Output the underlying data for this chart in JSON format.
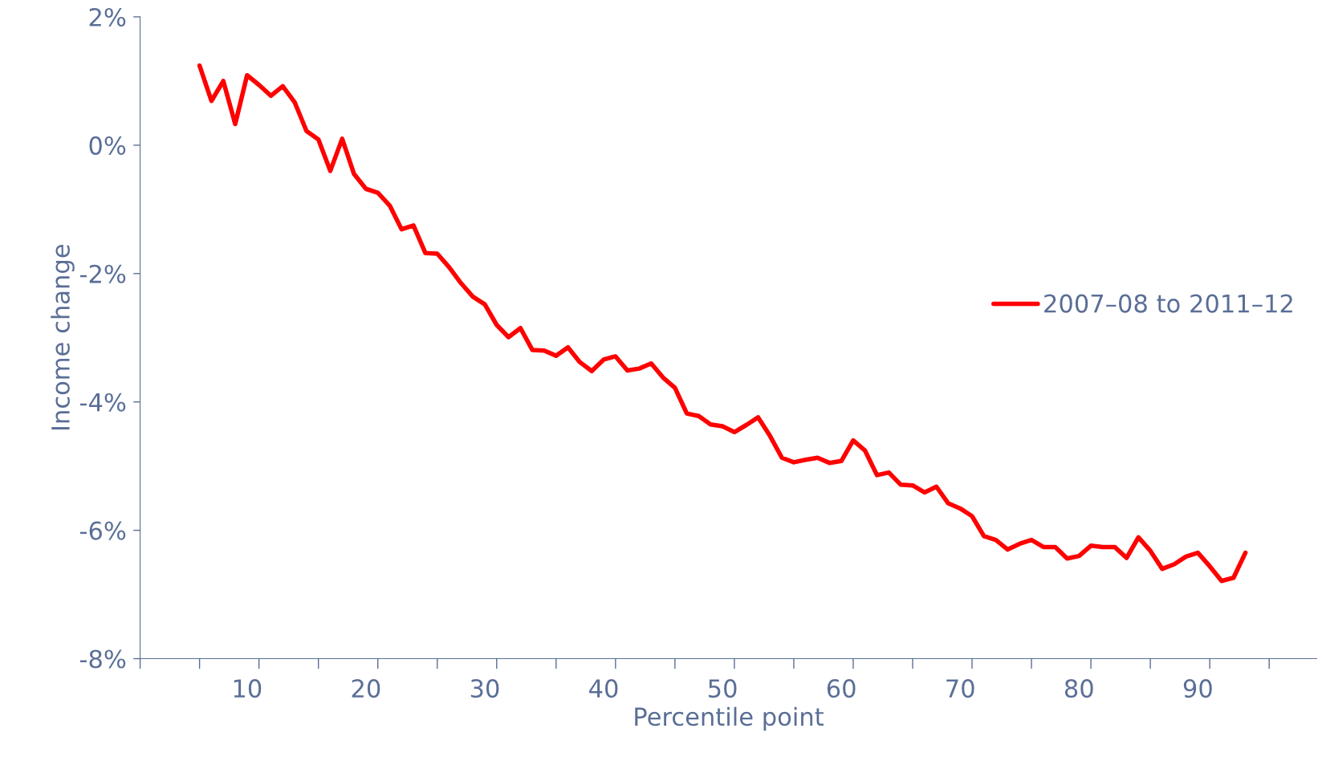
{
  "chart_data": {
    "type": "line",
    "xlabel": "Percentile point",
    "ylabel": "Income change",
    "x": [
      6,
      7,
      8,
      9,
      10,
      11,
      12,
      13,
      14,
      15,
      16,
      17,
      18,
      19,
      20,
      21,
      22,
      23,
      24,
      25,
      26,
      27,
      28,
      29,
      30,
      31,
      32,
      33,
      34,
      35,
      36,
      37,
      38,
      39,
      40,
      41,
      42,
      43,
      44,
      45,
      46,
      47,
      48,
      49,
      50,
      51,
      52,
      53,
      54,
      55,
      56,
      57,
      58,
      59,
      60,
      61,
      62,
      63,
      64,
      65,
      66,
      67,
      68,
      69,
      70,
      71,
      72,
      73,
      74,
      75,
      76,
      77,
      78,
      79,
      80,
      81,
      82,
      83,
      84,
      85,
      86,
      87,
      88,
      89,
      90,
      91,
      92,
      93,
      94
    ],
    "series": [
      {
        "name": "2007–08 to 2011–12",
        "color": "#ff0000",
        "values": [
          1.24,
          0.69,
          1.0,
          0.33,
          1.09,
          0.94,
          0.77,
          0.92,
          0.67,
          0.22,
          0.09,
          -0.4,
          0.1,
          -0.45,
          -0.68,
          -0.74,
          -0.94,
          -1.31,
          -1.25,
          -1.68,
          -1.69,
          -1.9,
          -2.15,
          -2.36,
          -2.48,
          -2.8,
          -2.99,
          -2.85,
          -3.19,
          -3.2,
          -3.28,
          -3.15,
          -3.38,
          -3.52,
          -3.34,
          -3.29,
          -3.51,
          -3.48,
          -3.4,
          -3.62,
          -3.78,
          -4.18,
          -4.22,
          -4.35,
          -4.38,
          -4.47,
          -4.36,
          -4.24,
          -4.53,
          -4.87,
          -4.94,
          -4.9,
          -4.87,
          -4.95,
          -4.92,
          -4.6,
          -4.76,
          -5.14,
          -5.1,
          -5.29,
          -5.3,
          -5.41,
          -5.32,
          -5.58,
          -5.66,
          -5.78,
          -6.09,
          -6.15,
          -6.3,
          -6.21,
          -6.15,
          -6.26,
          -6.26,
          -6.44,
          -6.4,
          -6.24,
          -6.26,
          -6.26,
          -6.43,
          -6.11,
          -6.32,
          -6.6,
          -6.53,
          -6.41,
          -6.35,
          -6.56,
          -6.79,
          -6.74,
          -6.35
        ]
      }
    ],
    "xlim": [
      1,
      100
    ],
    "xticks": [
      {
        "value": 1,
        "label": null
      },
      {
        "value": 6,
        "label": null
      },
      10,
      {
        "value": 11,
        "label": null
      },
      {
        "value": 16,
        "label": null
      },
      20,
      {
        "value": 21,
        "label": null
      },
      {
        "value": 26,
        "label": null
      },
      30,
      {
        "value": 31,
        "label": null
      },
      {
        "value": 36,
        "label": null
      },
      40,
      {
        "value": 41,
        "label": null
      },
      {
        "value": 46,
        "label": null
      },
      50,
      {
        "value": 51,
        "label": null
      },
      {
        "value": 56,
        "label": null
      },
      60,
      {
        "value": 61,
        "label": null
      },
      {
        "value": 66,
        "label": null
      },
      70,
      {
        "value": 71,
        "label": null
      },
      {
        "value": 76,
        "label": null
      },
      80,
      {
        "value": 81,
        "label": null
      },
      {
        "value": 86,
        "label": null
      },
      90,
      {
        "value": 91,
        "label": null
      },
      {
        "value": 96,
        "label": null
      }
    ],
    "ylim": [
      -8,
      2
    ],
    "yticks": [
      {
        "value": -8,
        "label": "-8%"
      },
      {
        "value": -6,
        "label": "-6%"
      },
      {
        "value": -4,
        "label": "-4%"
      },
      {
        "value": -2,
        "label": "-2%"
      },
      {
        "value": 0,
        "label": "0%"
      },
      {
        "value": 2,
        "label": "2%"
      }
    ],
    "grid": false,
    "legend": "right",
    "marker": "none",
    "line_style": "solid"
  }
}
